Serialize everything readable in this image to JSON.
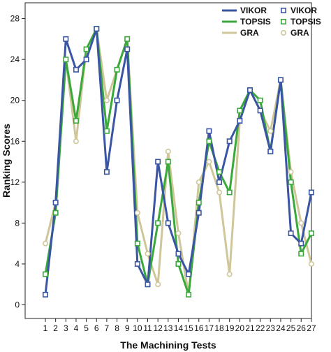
{
  "chart_data": {
    "type": "line",
    "xlabel": "The Machining Tests",
    "ylabel": "Ranking Scores",
    "categories": [
      "1",
      "2",
      "3",
      "4",
      "5",
      "6",
      "7",
      "8",
      "9",
      "10",
      "11",
      "12",
      "13",
      "14",
      "15",
      "16",
      "17",
      "18",
      "19",
      "20",
      "21",
      "22",
      "23",
      "24",
      "25",
      "26",
      "27"
    ],
    "ylim": [
      -2,
      28
    ],
    "yticks": [
      0,
      4,
      8,
      12,
      16,
      20,
      24,
      28
    ],
    "grid": false,
    "legend_position": "top-right",
    "series": [
      {
        "name": "VIKOR",
        "color": "#3a55a3",
        "marker": "square",
        "values": [
          1,
          10,
          26,
          23,
          24,
          27,
          13,
          20,
          25,
          4,
          2,
          14,
          8,
          5,
          3,
          9,
          17,
          12,
          16,
          18,
          21,
          19,
          15,
          22,
          7,
          6,
          11
        ]
      },
      {
        "name": "TOPSIS",
        "color": "#3aa83a",
        "marker": "square",
        "values": [
          3,
          9,
          24,
          18,
          25,
          27,
          17,
          23,
          26,
          6,
          2,
          8,
          14,
          4,
          1,
          10,
          16,
          13,
          11,
          19,
          21,
          20,
          15,
          22,
          12,
          5,
          7
        ]
      },
      {
        "name": "GRA",
        "color": "#cfc79a",
        "marker": "circle",
        "values": [
          6,
          10,
          24,
          16,
          25,
          27,
          20,
          23,
          26,
          9,
          5,
          2,
          15,
          7,
          1,
          12,
          14,
          11,
          3,
          18,
          21,
          19,
          17,
          22,
          13,
          8,
          4
        ]
      }
    ]
  }
}
